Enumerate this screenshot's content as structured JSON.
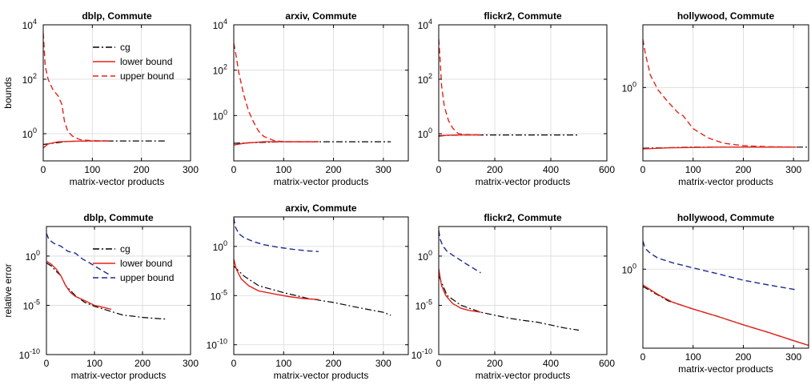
{
  "chart_data": [
    {
      "type": "line",
      "title": "dblp, Commute",
      "xlabel": "matrix-vector products",
      "ylabel": "bounds",
      "yscale": "log",
      "xlim": [
        0,
        300
      ],
      "ylim": [
        0.1,
        10000
      ],
      "xticks": [
        0,
        100,
        200,
        300
      ],
      "yticks": [
        {
          "v": 1,
          "b": "10",
          "e": "0"
        },
        {
          "v": 100,
          "b": "10",
          "e": "2"
        },
        {
          "v": 10000,
          "b": "10",
          "e": "4"
        }
      ],
      "grid": true,
      "legend": {
        "position": "top-right",
        "entries": [
          "cg",
          "lower bound",
          "upper bound"
        ]
      },
      "series": [
        {
          "name": "cg",
          "color": "#000000",
          "dash": "dashdot",
          "x": [
            0,
            50,
            100,
            150,
            200,
            250
          ],
          "y": [
            0.4,
            0.52,
            0.54,
            0.54,
            0.54,
            0.54
          ]
        },
        {
          "name": "lower bound",
          "color": "#e2231a",
          "dash": "solid",
          "x": [
            0,
            10,
            30,
            60,
            100,
            135
          ],
          "y": [
            0.3,
            0.42,
            0.5,
            0.53,
            0.54,
            0.54
          ]
        },
        {
          "name": "upper bound",
          "color": "#e2231a",
          "dash": "dashed",
          "x": [
            0,
            4,
            10,
            20,
            30,
            38,
            43,
            50,
            60,
            75,
            100,
            135
          ],
          "y": [
            5000,
            300,
            100,
            40,
            25,
            12,
            3,
            1.2,
            0.8,
            0.6,
            0.55,
            0.54
          ]
        }
      ]
    },
    {
      "type": "line",
      "title": "arxiv, Commute",
      "xlabel": "matrix-vector products",
      "ylabel": "",
      "yscale": "log",
      "xlim": [
        0,
        350
      ],
      "ylim": [
        0.01,
        10000
      ],
      "xticks": [
        0,
        100,
        200,
        300
      ],
      "yticks": [
        {
          "v": 1,
          "b": "10",
          "e": "0"
        },
        {
          "v": 100,
          "b": "10",
          "e": "2"
        },
        {
          "v": 10000,
          "b": "10",
          "e": "4"
        }
      ],
      "grid": true,
      "legend": null,
      "series": [
        {
          "name": "",
          "color": "#000000",
          "dash": "dashdot",
          "x": [
            0,
            100,
            200,
            315
          ],
          "y": [
            0.06,
            0.07,
            0.07,
            0.07
          ]
        },
        {
          "name": "",
          "color": "#e2231a",
          "dash": "solid",
          "x": [
            0,
            20,
            60,
            100,
            170
          ],
          "y": [
            0.05,
            0.06,
            0.07,
            0.07,
            0.07
          ]
        },
        {
          "name": "",
          "color": "#e2231a",
          "dash": "dashed",
          "x": [
            0,
            5,
            10,
            20,
            30,
            40,
            50,
            60,
            80,
            100,
            170
          ],
          "y": [
            1500,
            400,
            80,
            8,
            1.5,
            0.5,
            0.2,
            0.12,
            0.08,
            0.07,
            0.07
          ]
        }
      ]
    },
    {
      "type": "line",
      "title": "flickr2, Commute",
      "xlabel": "matrix-vector products",
      "ylabel": "",
      "yscale": "log",
      "xlim": [
        0,
        600
      ],
      "ylim": [
        0.1,
        10000
      ],
      "xticks": [
        0,
        200,
        400,
        600
      ],
      "yticks": [
        {
          "v": 1,
          "b": "10",
          "e": "0"
        },
        {
          "v": 100,
          "b": "10",
          "e": "2"
        },
        {
          "v": 10000,
          "b": "10",
          "e": "4"
        }
      ],
      "grid": true,
      "legend": null,
      "series": [
        {
          "name": "",
          "color": "#000000",
          "dash": "dashdot",
          "x": [
            0,
            100,
            300,
            500
          ],
          "y": [
            0.85,
            0.9,
            0.9,
            0.9
          ]
        },
        {
          "name": "",
          "color": "#e2231a",
          "dash": "solid",
          "x": [
            0,
            30,
            80,
            150
          ],
          "y": [
            0.8,
            0.88,
            0.9,
            0.9
          ]
        },
        {
          "name": "",
          "color": "#e2231a",
          "dash": "dashed",
          "x": [
            0,
            5,
            10,
            20,
            35,
            50,
            70,
            90,
            150
          ],
          "y": [
            3000,
            500,
            60,
            10,
            3,
            1.6,
            1.0,
            0.92,
            0.9
          ]
        }
      ]
    },
    {
      "type": "line",
      "title": "hollywood, Commute",
      "xlabel": "matrix-vector products",
      "ylabel": "",
      "yscale": "log",
      "xlim": [
        0,
        330
      ],
      "ylim": [
        0.03,
        20
      ],
      "xticks": [
        0,
        100,
        200,
        300
      ],
      "yticks": [
        {
          "v": 1,
          "b": "10",
          "e": "0"
        }
      ],
      "grid": true,
      "legend": null,
      "series": [
        {
          "name": "",
          "color": "#000000",
          "dash": "dashdot",
          "x": [
            0,
            100,
            200,
            330
          ],
          "y": [
            0.055,
            0.058,
            0.058,
            0.058
          ]
        },
        {
          "name": "",
          "color": "#e2231a",
          "dash": "solid",
          "x": [
            0,
            50,
            150,
            305
          ],
          "y": [
            0.053,
            0.056,
            0.058,
            0.058
          ]
        },
        {
          "name": "",
          "color": "#e2231a",
          "dash": "dashed",
          "x": [
            0,
            5,
            15,
            30,
            50,
            70,
            80,
            100,
            130,
            160,
            200,
            250,
            305
          ],
          "y": [
            10,
            5,
            1.8,
            0.9,
            0.5,
            0.3,
            0.26,
            0.14,
            0.09,
            0.07,
            0.062,
            0.059,
            0.058
          ]
        }
      ]
    },
    {
      "type": "line",
      "title": "dblp, Commute",
      "xlabel": "matrix-vector products",
      "ylabel": "relative error",
      "yscale": "log",
      "xlim": [
        0,
        300
      ],
      "ylim": [
        1e-10,
        1000
      ],
      "xticks": [
        0,
        100,
        200,
        300
      ],
      "yticks": [
        {
          "v": 1e-10,
          "b": "10",
          "e": "-10"
        },
        {
          "v": 1e-05,
          "b": "10",
          "e": "-5"
        },
        {
          "v": 1,
          "b": "10",
          "e": "0"
        }
      ],
      "grid": true,
      "legend": {
        "position": "top-right",
        "entries": [
          "cg",
          "lower bound",
          "upper bound"
        ]
      },
      "series": [
        {
          "name": "cg",
          "color": "#000000",
          "dash": "dashdot",
          "x": [
            0,
            10,
            20,
            30,
            40,
            60,
            80,
            100,
            120,
            140,
            160,
            180,
            200,
            220,
            250
          ],
          "y": [
            0.2,
            0.1,
            0.03,
            0.01,
            0.001,
            0.0001,
            2e-05,
            8e-06,
            4e-06,
            2e-06,
            1e-06,
            8e-07,
            6e-07,
            5e-07,
            4e-07
          ]
        },
        {
          "name": "lower bound",
          "color": "#e2231a",
          "dash": "solid",
          "x": [
            0,
            10,
            20,
            30,
            40,
            50,
            60,
            80,
            100,
            120,
            135
          ],
          "y": [
            0.3,
            0.15,
            0.05,
            0.01,
            0.001,
            0.0002,
            8e-05,
            3e-05,
            1e-05,
            6e-06,
            4e-06
          ]
        },
        {
          "name": "upper bound",
          "color": "#1f2a8c",
          "dash": "dashed",
          "x": [
            0,
            5,
            15,
            30,
            45,
            60,
            75,
            90,
            110,
            135
          ],
          "y": [
            200,
            50,
            20,
            10,
            3,
            2,
            0.5,
            0.2,
            0.05,
            0.01
          ]
        }
      ]
    },
    {
      "type": "line",
      "title": "arxiv, Commute",
      "xlabel": "matrix-vector products",
      "ylabel": "",
      "yscale": "log",
      "xlim": [
        0,
        350
      ],
      "ylim": [
        1e-11,
        1000
      ],
      "xticks": [
        0,
        100,
        200,
        300
      ],
      "yticks": [
        {
          "v": 1e-10,
          "b": "10",
          "e": "-10"
        },
        {
          "v": 1e-05,
          "b": "10",
          "e": "-5"
        },
        {
          "v": 1,
          "b": "10",
          "e": "0"
        }
      ],
      "grid": true,
      "legend": null,
      "series": [
        {
          "name": "",
          "color": "#000000",
          "dash": "dashdot",
          "x": [
            0,
            20,
            50,
            100,
            150,
            200,
            250,
            300,
            315
          ],
          "y": [
            0.01,
            0.001,
            0.0001,
            2e-05,
            5e-06,
            2e-06,
            6e-07,
            2e-07,
            1e-07
          ]
        },
        {
          "name": "",
          "color": "#e2231a",
          "dash": "solid",
          "x": [
            0,
            5,
            15,
            30,
            50,
            80,
            110,
            140,
            170
          ],
          "y": [
            0.05,
            0.005,
            0.0005,
            0.0001,
            3e-05,
            1.5e-05,
            8e-06,
            5e-06,
            4e-06
          ]
        },
        {
          "name": "",
          "color": "#1f2a8c",
          "dash": "dashed",
          "x": [
            0,
            3,
            10,
            20,
            40,
            60,
            90,
            120,
            150,
            170
          ],
          "y": [
            800,
            100,
            20,
            8,
            3,
            1.5,
            0.8,
            0.5,
            0.35,
            0.3
          ]
        }
      ]
    },
    {
      "type": "line",
      "title": "flickr2, Commute",
      "xlabel": "matrix-vector products",
      "ylabel": "",
      "yscale": "log",
      "xlim": [
        0,
        600
      ],
      "ylim": [
        1e-10,
        1000
      ],
      "xticks": [
        0,
        200,
        400,
        600
      ],
      "yticks": [
        {
          "v": 1e-10,
          "b": "10",
          "e": "-10"
        },
        {
          "v": 1e-05,
          "b": "10",
          "e": "-5"
        },
        {
          "v": 1,
          "b": "10",
          "e": "0"
        }
      ],
      "grid": true,
      "legend": null,
      "series": [
        {
          "name": "",
          "color": "#000000",
          "dash": "dashdot",
          "x": [
            0,
            30,
            80,
            150,
            200,
            250,
            300,
            350,
            400,
            450,
            500
          ],
          "y": [
            0.01,
            0.0001,
            1e-05,
            2e-06,
            1e-06,
            5e-07,
            3e-07,
            2e-07,
            1e-07,
            5e-08,
            3e-08
          ]
        },
        {
          "name": "",
          "color": "#e2231a",
          "dash": "solid",
          "x": [
            0,
            10,
            25,
            50,
            80,
            110,
            150
          ],
          "y": [
            0.05,
            0.001,
            0.0001,
            1.5e-05,
            5e-06,
            3e-06,
            2e-06
          ]
        },
        {
          "name": "",
          "color": "#1f2a8c",
          "dash": "dashed",
          "x": [
            0,
            5,
            15,
            30,
            60,
            100,
            150
          ],
          "y": [
            400,
            50,
            10,
            3,
            0.8,
            0.15,
            0.02
          ]
        }
      ]
    },
    {
      "type": "line",
      "title": "hollywood, Commute",
      "xlabel": "matrix-vector products",
      "ylabel": "",
      "yscale": "log",
      "xlim": [
        0,
        330
      ],
      "ylim": [
        1e-05,
        500
      ],
      "xticks": [
        0,
        100,
        200,
        300
      ],
      "yticks": [
        {
          "v": 1,
          "b": "10",
          "e": "0"
        }
      ],
      "grid": true,
      "legend": null,
      "series": [
        {
          "name": "",
          "color": "#000000",
          "dash": "dashdot",
          "x": [
            0,
            50,
            100,
            150,
            200,
            250,
            300,
            330
          ],
          "y": [
            0.08,
            0.01,
            0.003,
            0.001,
            0.0003,
            0.0001,
            3e-05,
            1.5e-05
          ]
        },
        {
          "name": "",
          "color": "#e2231a",
          "dash": "solid",
          "x": [
            0,
            15,
            35,
            60,
            100,
            150,
            200,
            250,
            300,
            330
          ],
          "y": [
            0.1,
            0.05,
            0.02,
            0.008,
            0.003,
            0.001,
            0.0003,
            0.0001,
            3e-05,
            1.5e-05
          ]
        },
        {
          "name": "",
          "color": "#1f2a8c",
          "dash": "dashed",
          "x": [
            0,
            5,
            15,
            30,
            60,
            100,
            150,
            200,
            250,
            305
          ],
          "y": [
            60,
            20,
            10,
            5,
            2.5,
            1.2,
            0.5,
            0.2,
            0.1,
            0.05
          ]
        }
      ]
    }
  ]
}
